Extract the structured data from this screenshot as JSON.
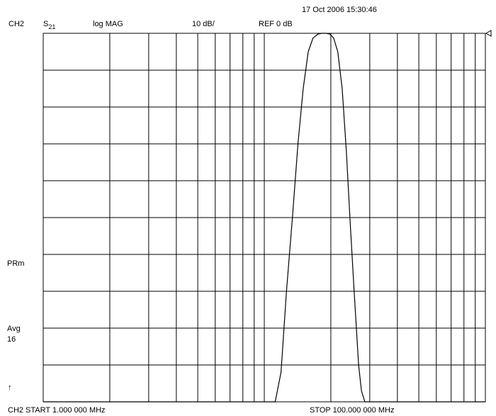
{
  "header": {
    "timestamp": "17 Oct 2006  15:30:46",
    "channel": "CH2",
    "param_main": "S",
    "param_sub": "21",
    "format": "log MAG",
    "scale": "10 dB/",
    "reference": "REF 0 dB"
  },
  "side": {
    "prm": "PRm",
    "avg_label": "Avg",
    "avg_value": "16",
    "arrow": "↑"
  },
  "footer": {
    "start": "CH2 START   1.000 000 MHz",
    "stop": "STOP  100.000 000 MHz"
  },
  "chart_data": {
    "type": "line",
    "xscale": "log",
    "xlim": [
      1,
      100
    ],
    "ylim": [
      -100,
      0
    ],
    "grid": true,
    "xgrid": [
      2,
      3,
      4,
      5,
      6,
      7,
      8,
      9,
      10,
      20,
      30,
      40,
      50,
      60,
      70,
      80,
      90
    ],
    "ygrid": [
      -10,
      -20,
      -30,
      -40,
      -50,
      -60,
      -70,
      -80,
      -90
    ],
    "series": [
      {
        "x": [
          1,
          11.2,
          11.9,
          12.6,
          13.4,
          14.2,
          15.0,
          15.8,
          16.6,
          17.5,
          18.2,
          19.0,
          19.8,
          20.6,
          21.5,
          22.5,
          23.5,
          24.5,
          25.5,
          26.7,
          27.5,
          28.5,
          100
        ],
        "y": [
          -100,
          -100,
          -92,
          -70,
          -50,
          -30,
          -15,
          -5,
          -1.3,
          -0.2,
          0,
          0,
          -0.2,
          -1.3,
          -5,
          -15,
          -32,
          -52,
          -70,
          -90,
          -97,
          -100,
          -100
        ]
      }
    ]
  }
}
